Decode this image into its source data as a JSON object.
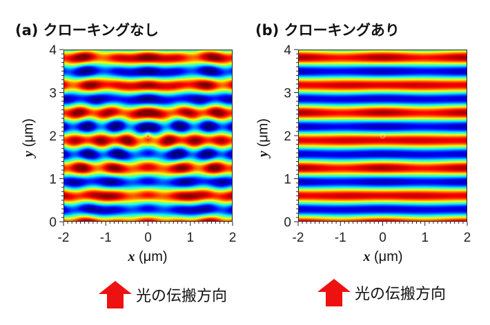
{
  "panels": [
    {
      "title": "(a) クローキングなし",
      "cloaking": false
    },
    {
      "title": "(b) クローキングあり",
      "cloaking": true
    }
  ],
  "propagation_label": "光の伝搬方向",
  "arrow_color": "#ee1111",
  "chart_data": [
    {
      "type": "heatmap",
      "title": "(a) クローキングなし",
      "xlabel": "x (μm)",
      "ylabel": "y (μm)",
      "xlim": [
        -2,
        2
      ],
      "ylim": [
        0,
        4
      ],
      "xticks": [
        "-2",
        "-1",
        "0",
        "1",
        "2"
      ],
      "yticks": [
        "0",
        "1",
        "2",
        "3",
        "4"
      ],
      "colormap": "jet",
      "object_position": [
        0,
        2
      ],
      "description_visible": "scattered wave pattern around object"
    },
    {
      "type": "heatmap",
      "title": "(b) クローキングあり",
      "xlabel": "x (μm)",
      "ylabel": "y (μm)",
      "xlim": [
        -2,
        2
      ],
      "ylim": [
        0,
        4
      ],
      "xticks": [
        "-2",
        "-1",
        "0",
        "1",
        "2"
      ],
      "yticks": [
        "0",
        "1",
        "2",
        "3",
        "4"
      ],
      "colormap": "jet",
      "object_position": [
        0,
        2
      ]
    }
  ]
}
